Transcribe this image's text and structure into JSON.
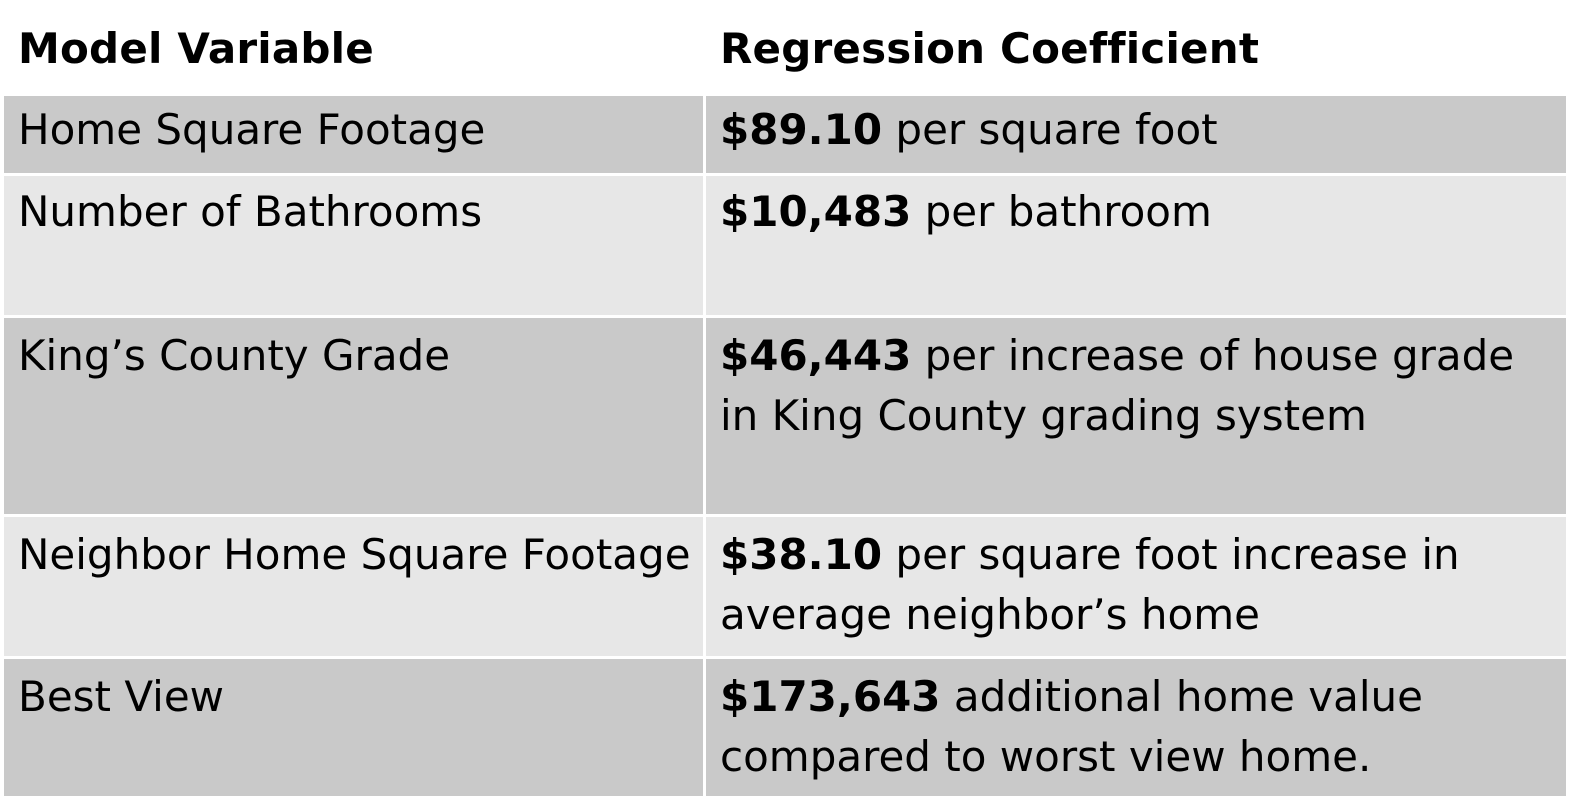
{
  "table": {
    "headers": {
      "variable": "Model Variable",
      "coefficient": "Regression Coefficient"
    },
    "rows": [
      {
        "variable": "Home Square Footage",
        "value": "$89.10",
        "description": " per square foot"
      },
      {
        "variable": "Number of Bathrooms",
        "value": "$10,483",
        "description": " per bathroom"
      },
      {
        "variable": "King’s County Grade",
        "value": "$46,443",
        "description": " per increase of house grade in King County grading system"
      },
      {
        "variable": "Neighbor Home Square Footage",
        "value": "$38.10",
        "description": " per square foot increase in average neighbor’s home"
      },
      {
        "variable": "Best View",
        "value": "$173,643",
        "description": " additional home value compared to worst view home."
      }
    ]
  }
}
